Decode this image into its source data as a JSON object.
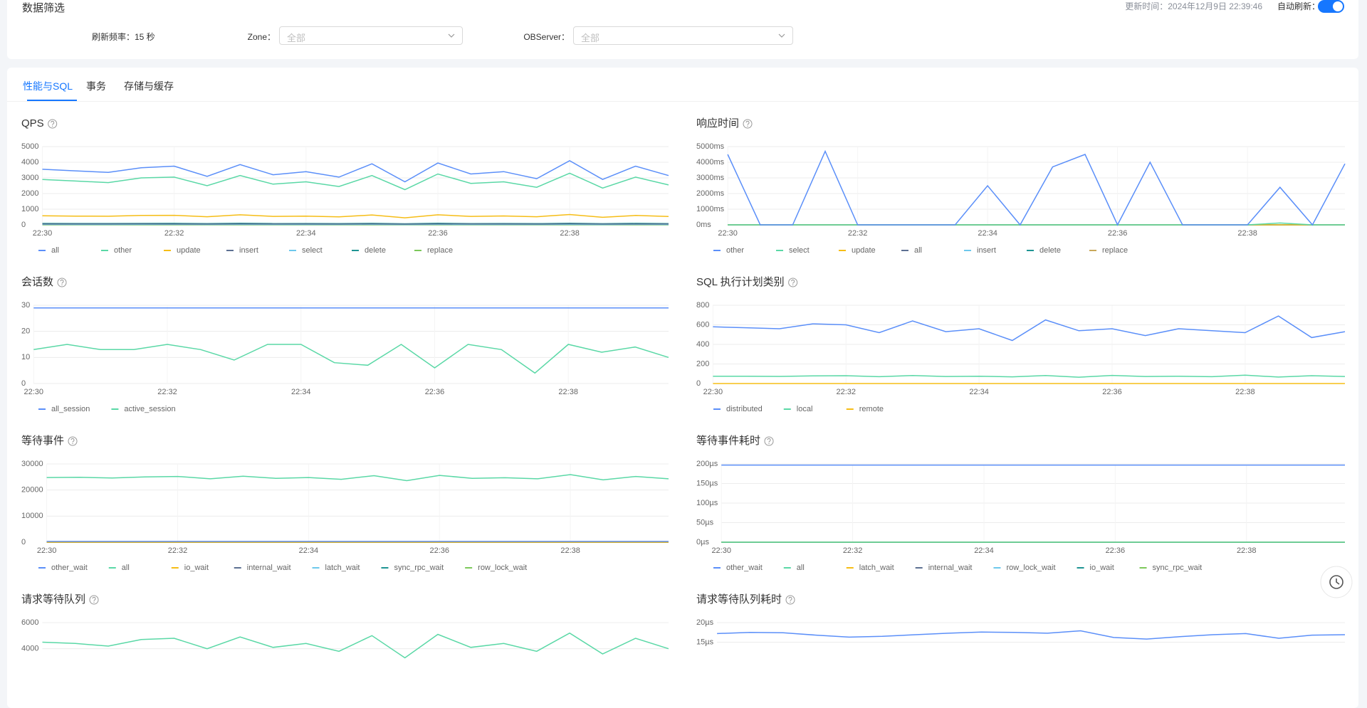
{
  "filter": {
    "title": "数据筛选",
    "update_time": "更新时间：2024年12月9日 22:39:46",
    "auto_refresh": "自动刷新：",
    "refresh_rate": "刷新频率：15 秒",
    "zone_label": "Zone：",
    "zone_value": "全部",
    "observer_label": "OBServer：",
    "observer_value": "全部"
  },
  "tabs": [
    "性能与SQL",
    "事务",
    "存储与缓存"
  ],
  "chart_data": [
    {
      "type": "line",
      "title": "QPS",
      "categories": [
        "22:30",
        null,
        null,
        null,
        "22:32",
        null,
        null,
        null,
        "22:34",
        null,
        null,
        null,
        "22:36",
        null,
        null,
        null,
        "22:38",
        null,
        null,
        null
      ],
      "ylim": [
        0,
        5000
      ],
      "yticks": [
        0,
        1000,
        2000,
        3000,
        4000,
        5000
      ],
      "grid": true,
      "series": [
        {
          "name": "all",
          "color": "#5b8ff9",
          "values": [
            3550,
            3450,
            3350,
            3650,
            3750,
            3100,
            3850,
            3200,
            3400,
            3050,
            3900,
            2750,
            3950,
            3250,
            3400,
            2950,
            4100,
            2900,
            3750,
            3150
          ]
        },
        {
          "name": "other",
          "color": "#5ad8a6",
          "values": [
            2900,
            2800,
            2700,
            3000,
            3050,
            2500,
            3150,
            2600,
            2750,
            2450,
            3150,
            2250,
            3250,
            2650,
            2750,
            2400,
            3300,
            2350,
            3050,
            2550
          ]
        },
        {
          "name": "update",
          "color": "#f6bd16",
          "values": [
            580,
            560,
            550,
            600,
            610,
            520,
            640,
            540,
            560,
            510,
            630,
            450,
            640,
            540,
            570,
            520,
            660,
            480,
            600,
            530
          ]
        },
        {
          "name": "insert",
          "color": "#5d7092",
          "values": [
            60,
            55,
            58,
            62,
            60,
            52,
            64,
            55,
            58,
            50,
            63,
            45,
            65,
            55,
            58,
            52,
            66,
            48,
            60,
            55
          ]
        },
        {
          "name": "select",
          "color": "#6dc8ec",
          "values": [
            25,
            24,
            23,
            25,
            26,
            22,
            27,
            23,
            24,
            21,
            27,
            19,
            27,
            23,
            24,
            21,
            28,
            20,
            26,
            22
          ]
        },
        {
          "name": "delete",
          "color": "#1e9493",
          "values": [
            90,
            88,
            85,
            92,
            95,
            80,
            98,
            82,
            86,
            78,
            97,
            70,
            100,
            84,
            87,
            76,
            102,
            74,
            94,
            80
          ]
        },
        {
          "name": "replace",
          "color": "#7cc85a",
          "values": [
            0,
            0,
            0,
            0,
            0,
            0,
            0,
            0,
            0,
            0,
            0,
            0,
            0,
            0,
            0,
            0,
            0,
            0,
            0,
            0
          ]
        }
      ]
    },
    {
      "type": "line",
      "title": "响应时间",
      "categories": [
        "22:30",
        null,
        null,
        null,
        "22:32",
        null,
        null,
        null,
        "22:34",
        null,
        null,
        null,
        "22:36",
        null,
        null,
        null,
        "22:38",
        null,
        null,
        null
      ],
      "ylim": [
        0,
        5000
      ],
      "yticks": [
        {
          "value": 0,
          "label": "0ms"
        },
        {
          "value": 1000,
          "label": "1000ms"
        },
        {
          "value": 2000,
          "label": "2000ms"
        },
        {
          "value": 3000,
          "label": "3000ms"
        },
        {
          "value": 4000,
          "label": "4000ms"
        },
        {
          "value": 5000,
          "label": "5000ms"
        }
      ],
      "grid": true,
      "series": [
        {
          "name": "other",
          "color": "#5b8ff9",
          "values": [
            4500,
            0,
            0,
            4700,
            0,
            0,
            0,
            0,
            2500,
            0,
            3700,
            4500,
            0,
            4000,
            0,
            0,
            0,
            2400,
            0,
            3900
          ]
        },
        {
          "name": "select",
          "color": "#5ad8a6",
          "values": [
            0,
            0,
            0,
            0,
            0,
            0,
            0,
            0,
            0,
            0,
            0,
            0,
            0,
            0,
            0,
            0,
            0,
            120,
            0,
            0
          ]
        },
        {
          "name": "update",
          "color": "#f6bd16",
          "values": [
            0,
            0,
            0,
            0,
            0,
            0,
            0,
            0,
            0,
            0,
            0,
            0,
            0,
            0,
            0,
            0,
            0,
            0,
            0,
            0
          ]
        },
        {
          "name": "all",
          "color": "#5d7092",
          "values": [
            0,
            0,
            0,
            0,
            0,
            0,
            0,
            0,
            0,
            0,
            0,
            0,
            0,
            0,
            0,
            0,
            0,
            0,
            0,
            0
          ]
        },
        {
          "name": "insert",
          "color": "#6dc8ec",
          "values": [
            0,
            0,
            0,
            0,
            0,
            0,
            0,
            0,
            0,
            0,
            0,
            0,
            0,
            0,
            0,
            0,
            0,
            0,
            0,
            0
          ]
        },
        {
          "name": "delete",
          "color": "#1e9493",
          "values": [
            0,
            0,
            0,
            0,
            0,
            0,
            0,
            0,
            0,
            0,
            0,
            0,
            0,
            0,
            0,
            0,
            0,
            0,
            0,
            0
          ]
        },
        {
          "name": "replace",
          "color": "#c9a85a",
          "values": [
            0,
            0,
            0,
            0,
            0,
            0,
            0,
            0,
            0,
            0,
            0,
            0,
            0,
            0,
            0,
            0,
            0,
            0,
            0,
            0
          ]
        }
      ]
    },
    {
      "type": "line",
      "title": "会话数",
      "categories": [
        "22:30",
        null,
        null,
        null,
        "22:32",
        null,
        null,
        null,
        "22:34",
        null,
        null,
        null,
        "22:36",
        null,
        null,
        null,
        "22:38",
        null,
        null,
        null
      ],
      "ylim": [
        0,
        30
      ],
      "yticks": [
        0,
        10,
        20,
        30
      ],
      "grid": true,
      "series": [
        {
          "name": "all_session",
          "color": "#5b8ff9",
          "values": [
            29,
            29,
            29,
            29,
            29,
            29,
            29,
            29,
            29,
            29,
            29,
            29,
            29,
            29,
            29,
            29,
            29,
            29,
            29,
            29
          ]
        },
        {
          "name": "active_session",
          "color": "#5ad8a6",
          "values": [
            13,
            15,
            13,
            13,
            15,
            13,
            9,
            15,
            15,
            8,
            7,
            15,
            6,
            15,
            13,
            4,
            15,
            12,
            14,
            10
          ]
        }
      ]
    },
    {
      "type": "line",
      "title": "SQL 执行计划类别",
      "categories": [
        "22:30",
        null,
        null,
        null,
        "22:32",
        null,
        null,
        null,
        "22:34",
        null,
        null,
        null,
        "22:36",
        null,
        null,
        null,
        "22:38",
        null,
        null,
        null
      ],
      "ylim": [
        0,
        800
      ],
      "yticks": [
        0,
        200,
        400,
        600,
        800
      ],
      "grid": true,
      "series": [
        {
          "name": "distributed",
          "color": "#5b8ff9",
          "values": [
            580,
            570,
            560,
            610,
            600,
            520,
            640,
            530,
            560,
            440,
            650,
            540,
            560,
            490,
            560,
            540,
            520,
            690,
            470,
            530
          ]
        },
        {
          "name": "local",
          "color": "#5ad8a6",
          "values": [
            75,
            74,
            73,
            78,
            80,
            70,
            82,
            72,
            75,
            68,
            82,
            65,
            83,
            72,
            75,
            70,
            85,
            66,
            80,
            72
          ]
        },
        {
          "name": "remote",
          "color": "#f6bd16",
          "values": [
            0,
            0,
            0,
            0,
            0,
            0,
            0,
            0,
            0,
            0,
            0,
            0,
            0,
            0,
            0,
            0,
            0,
            0,
            0,
            0
          ]
        }
      ]
    },
    {
      "type": "line",
      "title": "等待事件",
      "categories": [
        "22:30",
        null,
        null,
        null,
        "22:32",
        null,
        null,
        null,
        "22:34",
        null,
        null,
        null,
        "22:36",
        null,
        null,
        null,
        "22:38",
        null,
        null,
        null
      ],
      "ylim": [
        0,
        30000
      ],
      "yticks": [
        0,
        10000,
        20000,
        30000
      ],
      "grid": true,
      "series": [
        {
          "name": "other_wait",
          "color": "#5b8ff9",
          "values": [
            300,
            300,
            300,
            300,
            300,
            300,
            300,
            300,
            300,
            300,
            300,
            300,
            300,
            300,
            300,
            300,
            300,
            300,
            300,
            300
          ]
        },
        {
          "name": "all",
          "color": "#5ad8a6",
          "values": [
            24800,
            24900,
            24600,
            25000,
            25200,
            24300,
            25300,
            24500,
            24800,
            24100,
            25500,
            23600,
            25600,
            24500,
            24700,
            24300,
            25900,
            23900,
            25200,
            24300
          ]
        },
        {
          "name": "io_wait",
          "color": "#f6bd16",
          "values": [
            0,
            0,
            0,
            0,
            0,
            0,
            0,
            0,
            0,
            0,
            0,
            0,
            0,
            0,
            0,
            0,
            0,
            0,
            0,
            0
          ]
        },
        {
          "name": "internal_wait",
          "color": "#5d7092",
          "values": [
            0,
            0,
            0,
            0,
            0,
            0,
            0,
            0,
            0,
            0,
            0,
            0,
            0,
            0,
            0,
            0,
            0,
            0,
            0,
            0
          ]
        },
        {
          "name": "latch_wait",
          "color": "#6dc8ec",
          "values": [
            0,
            0,
            0,
            0,
            0,
            0,
            0,
            0,
            0,
            0,
            0,
            0,
            0,
            0,
            0,
            0,
            0,
            0,
            0,
            0
          ]
        },
        {
          "name": "sync_rpc_wait",
          "color": "#1e9493",
          "values": [
            0,
            0,
            0,
            0,
            0,
            0,
            0,
            0,
            0,
            0,
            0,
            0,
            0,
            0,
            0,
            0,
            0,
            0,
            0,
            0
          ]
        },
        {
          "name": "row_lock_wait",
          "color": "#7cc85a",
          "values": [
            0,
            0,
            0,
            0,
            0,
            0,
            0,
            0,
            0,
            0,
            0,
            0,
            0,
            0,
            0,
            0,
            0,
            0,
            0,
            0
          ]
        }
      ]
    },
    {
      "type": "line",
      "title": "等待事件耗时",
      "categories": [
        "22:30",
        null,
        null,
        null,
        "22:32",
        null,
        null,
        null,
        "22:34",
        null,
        null,
        null,
        "22:36",
        null,
        null,
        null,
        "22:38",
        null,
        null,
        null
      ],
      "ylim": [
        0,
        200
      ],
      "yticks": [
        {
          "value": 0,
          "label": "0µs"
        },
        {
          "value": 50,
          "label": "50µs"
        },
        {
          "value": 100,
          "label": "100µs"
        },
        {
          "value": 150,
          "label": "150µs"
        },
        {
          "value": 200,
          "label": "200µs"
        }
      ],
      "grid": true,
      "series": [
        {
          "name": "other_wait",
          "color": "#5b8ff9",
          "values": [
            197,
            197,
            197,
            197,
            197,
            197,
            197,
            197,
            197,
            197,
            197,
            197,
            197,
            197,
            197,
            197,
            197,
            197,
            197,
            197
          ]
        },
        {
          "name": "all",
          "color": "#5ad8a6",
          "values": [
            0,
            0,
            0,
            0,
            0,
            0,
            0,
            0,
            0,
            0,
            0,
            0,
            0,
            0,
            0,
            0,
            0,
            0,
            0,
            0
          ]
        },
        {
          "name": "latch_wait",
          "color": "#f6bd16",
          "values": [
            0,
            0,
            0,
            0,
            0,
            0,
            0,
            0,
            0,
            0,
            0,
            0,
            0,
            0,
            0,
            0,
            0,
            0,
            0,
            0
          ]
        },
        {
          "name": "internal_wait",
          "color": "#5d7092",
          "values": [
            0,
            0,
            0,
            0,
            0,
            0,
            0,
            0,
            0,
            0,
            0,
            0,
            0,
            0,
            0,
            0,
            0,
            0,
            0,
            0
          ]
        },
        {
          "name": "row_lock_wait",
          "color": "#6dc8ec",
          "values": [
            0,
            0,
            0,
            0,
            0,
            0,
            0,
            0,
            0,
            0,
            0,
            0,
            0,
            0,
            0,
            0,
            0,
            0,
            0,
            0
          ]
        },
        {
          "name": "io_wait",
          "color": "#1e9493",
          "values": [
            0,
            0,
            0,
            0,
            0,
            0,
            0,
            0,
            0,
            0,
            0,
            0,
            0,
            0,
            0,
            0,
            0,
            0,
            0,
            0
          ]
        },
        {
          "name": "sync_rpc_wait",
          "color": "#7cc85a",
          "values": [
            0,
            0,
            0,
            0,
            0,
            0,
            0,
            0,
            0,
            0,
            0,
            0,
            0,
            0,
            0,
            0,
            0,
            0,
            0,
            0
          ]
        }
      ]
    },
    {
      "type": "line",
      "title": "请求等待队列",
      "ylim": [
        0,
        6000
      ],
      "yticks": [
        4000,
        6000
      ],
      "grid": true,
      "series": [
        {
          "color": "#5ad8a6",
          "values": [
            4500,
            4400,
            4200,
            4700,
            4800,
            4000,
            4900,
            4100,
            4400,
            3800,
            5000,
            3300,
            5100,
            4100,
            4400,
            3800,
            5200,
            3600,
            4800,
            4000
          ]
        }
      ]
    },
    {
      "type": "line",
      "title": "请求等待队列耗时",
      "ylim": [
        0,
        20
      ],
      "yticks": [
        {
          "value": 15,
          "label": "15µs"
        },
        {
          "value": 20,
          "label": "20µs"
        }
      ],
      "grid": true,
      "series": [
        {
          "color": "#5b8ff9",
          "values": [
            17.2,
            17.5,
            17.4,
            16.8,
            16.3,
            16.5,
            16.9,
            17.3,
            17.6,
            17.5,
            17.3,
            17.9,
            16.2,
            15.8,
            16.4,
            16.9,
            17.2,
            16,
            16.8,
            16.9
          ]
        }
      ]
    }
  ]
}
